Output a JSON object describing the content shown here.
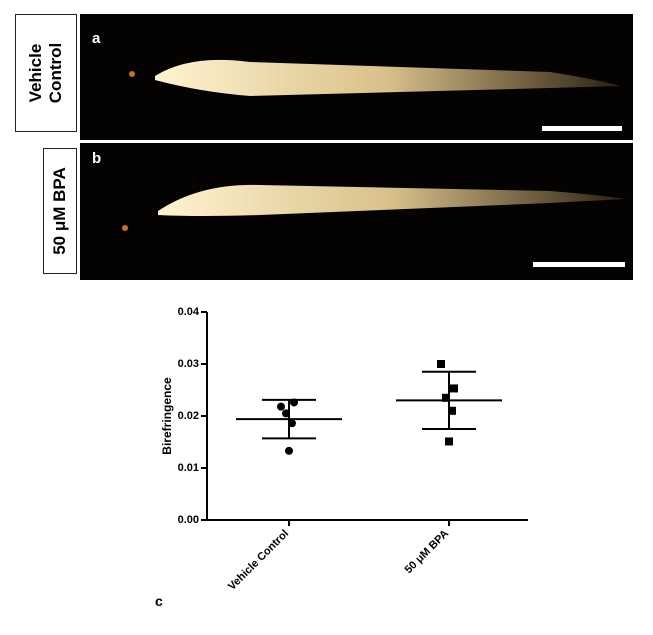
{
  "panels": [
    {
      "label": "a",
      "side_label": "Vehicle Control"
    },
    {
      "label": "b",
      "side_label": "50 μM BPA"
    }
  ],
  "chart_data": {
    "type": "dotplot",
    "panel_label": "c",
    "y_label": "Birefringence",
    "categories": [
      "Vehicle Control",
      "50 μM BPA"
    ],
    "values": [
      [
        0.0218,
        0.0226,
        0.0205,
        0.0186,
        0.0133
      ],
      [
        0.03,
        0.0253,
        0.0235,
        0.021,
        0.0151
      ]
    ],
    "markers": [
      "circle",
      "square"
    ],
    "mean": [
      0.0194,
      0.023
    ],
    "error": [
      0.0037,
      0.0055
    ],
    "color": "#000000",
    "ylim": [
      0,
      0.04
    ],
    "yticks": [
      {
        "value": 0,
        "label": "0.00"
      },
      0.01,
      0.02,
      0.03,
      0.04
    ]
  }
}
